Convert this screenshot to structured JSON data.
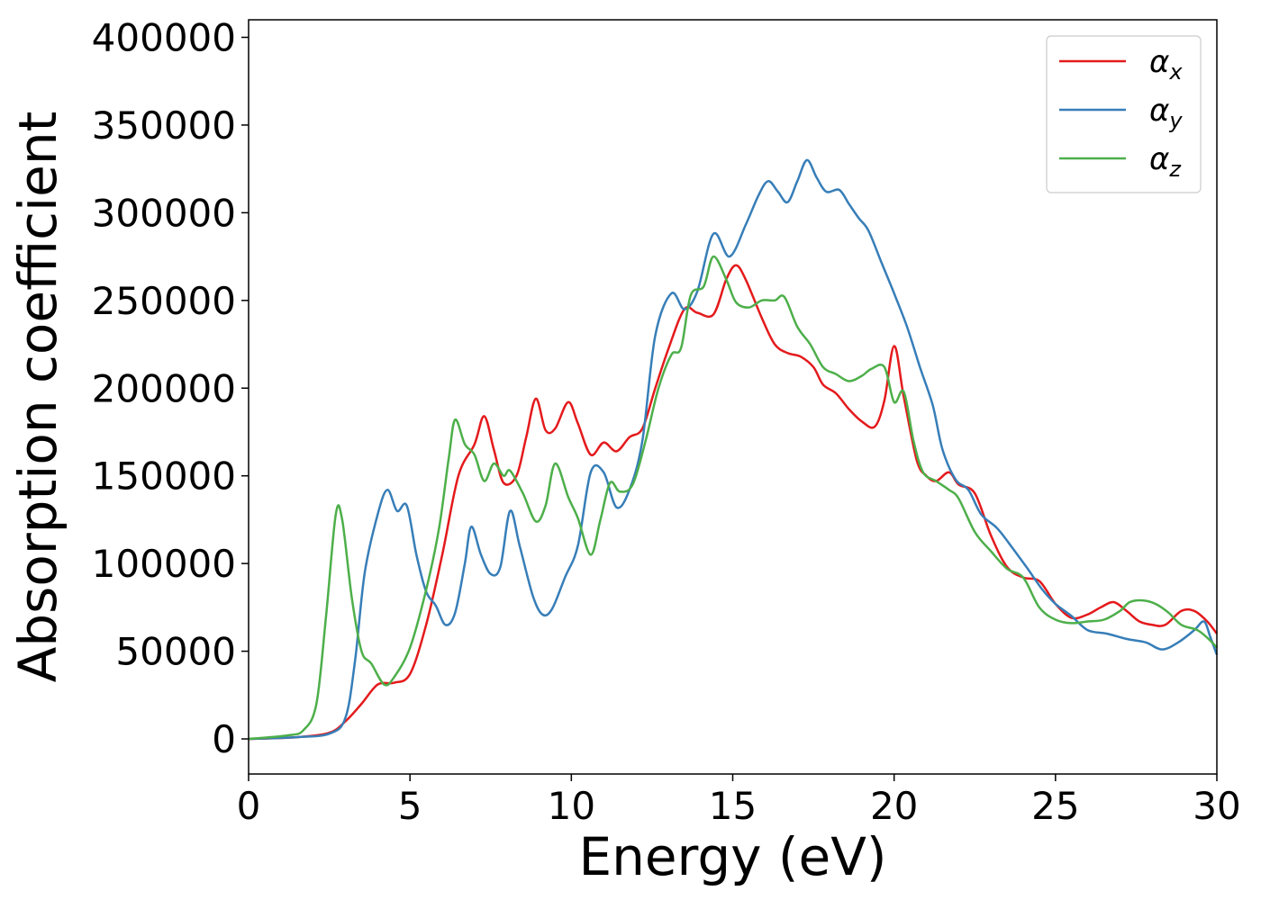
{
  "chart_data": {
    "type": "line",
    "title": "",
    "xlabel": "Energy (eV)",
    "ylabel": "Absorption coefficient",
    "xlim": [
      0,
      30
    ],
    "ylim": [
      -20000,
      410000
    ],
    "xticks": [
      0,
      5,
      10,
      15,
      20,
      25,
      30
    ],
    "yticks": [
      0,
      50000,
      100000,
      150000,
      200000,
      250000,
      300000,
      350000,
      400000
    ],
    "xtick_labels": [
      "0",
      "5",
      "10",
      "15",
      "20",
      "25",
      "30"
    ],
    "ytick_labels": [
      "0",
      "50000",
      "100000",
      "150000",
      "200000",
      "250000",
      "300000",
      "350000",
      "400000"
    ],
    "grid": false,
    "legend_position": "top-right",
    "series": [
      {
        "name": "α_x",
        "label_main": "α",
        "label_sub": "x",
        "color": "#e41a1c",
        "points": [
          [
            0,
            0
          ],
          [
            1.5,
            1000
          ],
          [
            2.5,
            3500
          ],
          [
            3.0,
            10000
          ],
          [
            3.5,
            20000
          ],
          [
            4.0,
            31000
          ],
          [
            4.5,
            32000
          ],
          [
            5.0,
            37000
          ],
          [
            5.5,
            65000
          ],
          [
            6.0,
            105000
          ],
          [
            6.5,
            150000
          ],
          [
            7.0,
            168000
          ],
          [
            7.3,
            184000
          ],
          [
            7.6,
            165000
          ],
          [
            7.9,
            146000
          ],
          [
            8.3,
            150000
          ],
          [
            8.6,
            172000
          ],
          [
            8.9,
            194000
          ],
          [
            9.2,
            176000
          ],
          [
            9.5,
            177000
          ],
          [
            9.9,
            192000
          ],
          [
            10.2,
            180000
          ],
          [
            10.6,
            162000
          ],
          [
            11.0,
            169000
          ],
          [
            11.4,
            164000
          ],
          [
            11.8,
            172000
          ],
          [
            12.2,
            177000
          ],
          [
            12.6,
            200000
          ],
          [
            13.0,
            222000
          ],
          [
            13.5,
            245000
          ],
          [
            13.9,
            243000
          ],
          [
            14.4,
            242000
          ],
          [
            14.8,
            262000
          ],
          [
            15.1,
            270000
          ],
          [
            15.4,
            262000
          ],
          [
            15.9,
            240000
          ],
          [
            16.3,
            225000
          ],
          [
            16.7,
            220000
          ],
          [
            17.1,
            218000
          ],
          [
            17.5,
            212000
          ],
          [
            17.8,
            202000
          ],
          [
            18.2,
            197000
          ],
          [
            18.6,
            188000
          ],
          [
            19.0,
            181000
          ],
          [
            19.4,
            178000
          ],
          [
            19.7,
            193000
          ],
          [
            20.0,
            224000
          ],
          [
            20.3,
            195000
          ],
          [
            20.7,
            159000
          ],
          [
            21.0,
            150000
          ],
          [
            21.3,
            147000
          ],
          [
            21.7,
            152000
          ],
          [
            22.0,
            145000
          ],
          [
            22.5,
            140000
          ],
          [
            23.0,
            116000
          ],
          [
            23.5,
            98000
          ],
          [
            24.0,
            92000
          ],
          [
            24.5,
            90000
          ],
          [
            25.0,
            77000
          ],
          [
            25.5,
            69000
          ],
          [
            26.0,
            71000
          ],
          [
            26.4,
            75000
          ],
          [
            26.8,
            78000
          ],
          [
            27.2,
            73000
          ],
          [
            27.6,
            67000
          ],
          [
            28.0,
            65000
          ],
          [
            28.4,
            65000
          ],
          [
            28.9,
            73000
          ],
          [
            29.3,
            73000
          ],
          [
            29.7,
            67000
          ],
          [
            30.0,
            60000
          ]
        ]
      },
      {
        "name": "α_y",
        "label_main": "α",
        "label_sub": "y",
        "color": "#377eb8",
        "points": [
          [
            0,
            0
          ],
          [
            1.5,
            1000
          ],
          [
            2.5,
            3000
          ],
          [
            3.0,
            12000
          ],
          [
            3.3,
            45000
          ],
          [
            3.6,
            95000
          ],
          [
            4.0,
            128000
          ],
          [
            4.3,
            142000
          ],
          [
            4.6,
            130000
          ],
          [
            4.9,
            133000
          ],
          [
            5.2,
            105000
          ],
          [
            5.5,
            84000
          ],
          [
            5.8,
            76000
          ],
          [
            6.1,
            65000
          ],
          [
            6.4,
            72000
          ],
          [
            6.7,
            100000
          ],
          [
            6.9,
            121000
          ],
          [
            7.2,
            105000
          ],
          [
            7.5,
            94000
          ],
          [
            7.8,
            98000
          ],
          [
            8.1,
            130000
          ],
          [
            8.4,
            110000
          ],
          [
            8.8,
            82000
          ],
          [
            9.1,
            71000
          ],
          [
            9.4,
            74000
          ],
          [
            9.8,
            92000
          ],
          [
            10.2,
            110000
          ],
          [
            10.6,
            152000
          ],
          [
            11.0,
            152000
          ],
          [
            11.4,
            132000
          ],
          [
            11.8,
            142000
          ],
          [
            12.2,
            170000
          ],
          [
            12.6,
            230000
          ],
          [
            13.1,
            254000
          ],
          [
            13.5,
            245000
          ],
          [
            13.9,
            255000
          ],
          [
            14.4,
            288000
          ],
          [
            14.9,
            275000
          ],
          [
            15.4,
            293000
          ],
          [
            15.8,
            310000
          ],
          [
            16.1,
            318000
          ],
          [
            16.4,
            312000
          ],
          [
            16.7,
            306000
          ],
          [
            17.0,
            318000
          ],
          [
            17.3,
            330000
          ],
          [
            17.6,
            320000
          ],
          [
            17.9,
            312000
          ],
          [
            18.3,
            313000
          ],
          [
            18.6,
            305000
          ],
          [
            18.9,
            297000
          ],
          [
            19.2,
            290000
          ],
          [
            19.6,
            272000
          ],
          [
            20.0,
            254000
          ],
          [
            20.4,
            235000
          ],
          [
            20.8,
            212000
          ],
          [
            21.2,
            190000
          ],
          [
            21.5,
            165000
          ],
          [
            21.9,
            148000
          ],
          [
            22.3,
            142000
          ],
          [
            22.7,
            128000
          ],
          [
            23.2,
            120000
          ],
          [
            23.7,
            108000
          ],
          [
            24.1,
            98000
          ],
          [
            24.6,
            85000
          ],
          [
            25.0,
            77000
          ],
          [
            25.5,
            70000
          ],
          [
            26.0,
            62000
          ],
          [
            26.6,
            60000
          ],
          [
            27.2,
            57000
          ],
          [
            27.8,
            55000
          ],
          [
            28.3,
            51000
          ],
          [
            28.8,
            55000
          ],
          [
            29.3,
            62000
          ],
          [
            29.6,
            67000
          ],
          [
            29.8,
            58000
          ],
          [
            30.0,
            48000
          ]
        ]
      },
      {
        "name": "α_z",
        "label_main": "α",
        "label_sub": "z",
        "color": "#4daf4a",
        "points": [
          [
            0,
            0
          ],
          [
            1.2,
            2000
          ],
          [
            1.7,
            5000
          ],
          [
            2.1,
            20000
          ],
          [
            2.4,
            70000
          ],
          [
            2.7,
            128000
          ],
          [
            2.9,
            125000
          ],
          [
            3.2,
            80000
          ],
          [
            3.5,
            50000
          ],
          [
            3.8,
            43000
          ],
          [
            4.2,
            31000
          ],
          [
            4.5,
            35000
          ],
          [
            5.0,
            52000
          ],
          [
            5.5,
            85000
          ],
          [
            5.9,
            120000
          ],
          [
            6.2,
            160000
          ],
          [
            6.4,
            182000
          ],
          [
            6.7,
            168000
          ],
          [
            7.0,
            162000
          ],
          [
            7.3,
            147000
          ],
          [
            7.6,
            157000
          ],
          [
            7.9,
            150000
          ],
          [
            8.1,
            153000
          ],
          [
            8.5,
            140000
          ],
          [
            8.9,
            124000
          ],
          [
            9.2,
            133000
          ],
          [
            9.5,
            157000
          ],
          [
            9.9,
            138000
          ],
          [
            10.2,
            126000
          ],
          [
            10.6,
            105000
          ],
          [
            10.9,
            125000
          ],
          [
            11.2,
            146000
          ],
          [
            11.5,
            141000
          ],
          [
            11.9,
            145000
          ],
          [
            12.3,
            170000
          ],
          [
            12.7,
            200000
          ],
          [
            13.1,
            219000
          ],
          [
            13.4,
            223000
          ],
          [
            13.7,
            253000
          ],
          [
            14.1,
            258000
          ],
          [
            14.4,
            275000
          ],
          [
            14.8,
            262000
          ],
          [
            15.1,
            249000
          ],
          [
            15.5,
            246000
          ],
          [
            15.9,
            250000
          ],
          [
            16.3,
            250000
          ],
          [
            16.6,
            252000
          ],
          [
            17.0,
            235000
          ],
          [
            17.4,
            225000
          ],
          [
            17.8,
            212000
          ],
          [
            18.2,
            208000
          ],
          [
            18.6,
            204000
          ],
          [
            19.0,
            207000
          ],
          [
            19.3,
            211000
          ],
          [
            19.7,
            212000
          ],
          [
            20.0,
            192000
          ],
          [
            20.3,
            198000
          ],
          [
            20.6,
            170000
          ],
          [
            20.9,
            152000
          ],
          [
            21.3,
            147000
          ],
          [
            21.7,
            142000
          ],
          [
            22.0,
            137000
          ],
          [
            22.5,
            118000
          ],
          [
            23.0,
            107000
          ],
          [
            23.5,
            97000
          ],
          [
            24.0,
            92000
          ],
          [
            24.5,
            75000
          ],
          [
            25.0,
            68000
          ],
          [
            25.5,
            66000
          ],
          [
            26.0,
            67000
          ],
          [
            26.5,
            68000
          ],
          [
            27.0,
            73000
          ],
          [
            27.3,
            78000
          ],
          [
            27.7,
            79000
          ],
          [
            28.1,
            77000
          ],
          [
            28.5,
            72000
          ],
          [
            28.9,
            65000
          ],
          [
            29.4,
            62000
          ],
          [
            29.8,
            56000
          ],
          [
            30.0,
            52000
          ]
        ]
      }
    ]
  }
}
